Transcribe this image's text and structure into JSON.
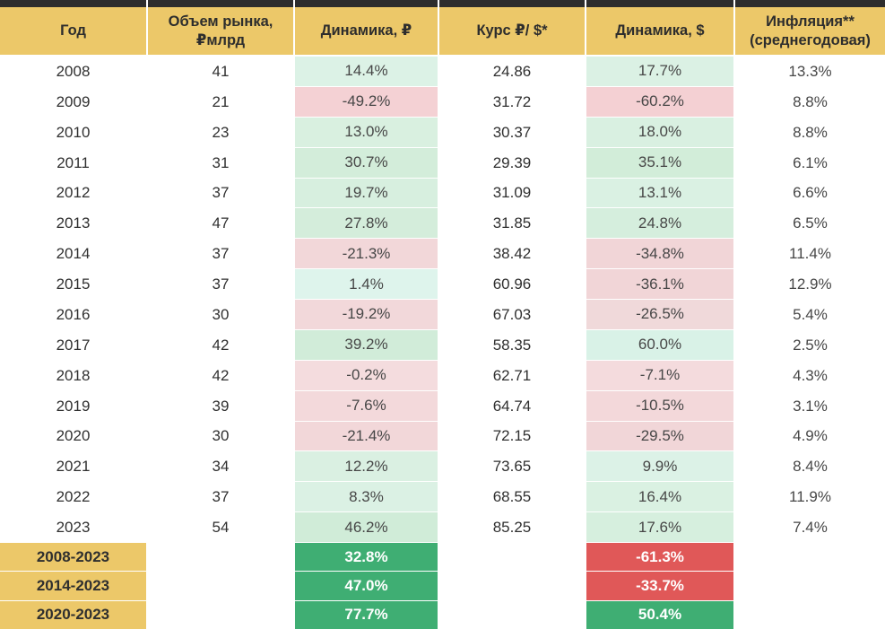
{
  "colors": {
    "top_bar": "#2d2d2d",
    "header_bg": "#ecc869",
    "summary_green": "#3fae73",
    "summary_red": "#e05858",
    "positive_light": "#dbf1e4",
    "negative_light": "#f3d8da"
  },
  "chart_data": {
    "type": "table",
    "columns": [
      "Год",
      "Объем рынка, ₽млрд",
      "Динамика, ₽",
      "Курс ₽/ $*",
      "Динамика, $",
      "Инфляция** (среднегодовая)"
    ],
    "rows": [
      {
        "year": "2008",
        "volume": "41",
        "dyn_rub": "14.4%",
        "dyn_rub_bg": "#dcf2e6",
        "rate": "24.86",
        "dyn_usd": "17.7%",
        "dyn_usd_bg": "#dbf1e4",
        "inflation": "13.3%"
      },
      {
        "year": "2009",
        "volume": "21",
        "dyn_rub": "-49.2%",
        "dyn_rub_bg": "#f4d1d4",
        "rate": "31.72",
        "dyn_usd": "-60.2%",
        "dyn_usd_bg": "#f4d0d3",
        "inflation": "8.8%"
      },
      {
        "year": "2010",
        "volume": "23",
        "dyn_rub": "13.0%",
        "dyn_rub_bg": "#d9f0e0",
        "rate": "30.37",
        "dyn_usd": "18.0%",
        "dyn_usd_bg": "#d9f0e1",
        "inflation": "8.8%"
      },
      {
        "year": "2011",
        "volume": "31",
        "dyn_rub": "30.7%",
        "dyn_rub_bg": "#d3edda",
        "rate": "29.39",
        "dyn_usd": "35.1%",
        "dyn_usd_bg": "#d2edd9",
        "inflation": "6.1%"
      },
      {
        "year": "2012",
        "volume": "37",
        "dyn_rub": "19.7%",
        "dyn_rub_bg": "#d7efdf",
        "rate": "31.09",
        "dyn_usd": "13.1%",
        "dyn_usd_bg": "#daf1e3",
        "inflation": "6.6%"
      },
      {
        "year": "2013",
        "volume": "47",
        "dyn_rub": "27.8%",
        "dyn_rub_bg": "#d4eddb",
        "rate": "31.85",
        "dyn_usd": "24.8%",
        "dyn_usd_bg": "#d5eedd",
        "inflation": "6.5%"
      },
      {
        "year": "2014",
        "volume": "37",
        "dyn_rub": "-21.3%",
        "dyn_rub_bg": "#f2d7d9",
        "rate": "38.42",
        "dyn_usd": "-34.8%",
        "dyn_usd_bg": "#f1d5d7",
        "inflation": "11.4%"
      },
      {
        "year": "2015",
        "volume": "37",
        "dyn_rub": "1.4%",
        "dyn_rub_bg": "#def4ec",
        "rate": "60.96",
        "dyn_usd": "-36.1%",
        "dyn_usd_bg": "#f1d5d7",
        "inflation": "12.9%"
      },
      {
        "year": "2016",
        "volume": "30",
        "dyn_rub": "-19.2%",
        "dyn_rub_bg": "#f2d8da",
        "rate": "67.03",
        "dyn_usd": "-26.5%",
        "dyn_usd_bg": "#f0d9da",
        "inflation": "5.4%"
      },
      {
        "year": "2017",
        "volume": "42",
        "dyn_rub": "39.2%",
        "dyn_rub_bg": "#d1ecd9",
        "rate": "58.35",
        "dyn_usd": "60.0%",
        "dyn_usd_bg": "#d9f2e7",
        "inflation": "2.5%"
      },
      {
        "year": "2018",
        "volume": "42",
        "dyn_rub": "-0.2%",
        "dyn_rub_bg": "#f4dcde",
        "rate": "62.71",
        "dyn_usd": "-7.1%",
        "dyn_usd_bg": "#f4dbdd",
        "inflation": "4.3%"
      },
      {
        "year": "2019",
        "volume": "39",
        "dyn_rub": "-7.6%",
        "dyn_rub_bg": "#f3d9db",
        "rate": "64.74",
        "dyn_usd": "-10.5%",
        "dyn_usd_bg": "#f3d8da",
        "inflation": "3.1%"
      },
      {
        "year": "2020",
        "volume": "30",
        "dyn_rub": "-21.4%",
        "dyn_rub_bg": "#f2d7d9",
        "rate": "72.15",
        "dyn_usd": "-29.5%",
        "dyn_usd_bg": "#f1d6d8",
        "inflation": "4.9%"
      },
      {
        "year": "2021",
        "volume": "34",
        "dyn_rub": "12.2%",
        "dyn_rub_bg": "#daf0e2",
        "rate": "73.65",
        "dyn_usd": "9.9%",
        "dyn_usd_bg": "#dcf2e7",
        "inflation": "8.4%"
      },
      {
        "year": "2022",
        "volume": "37",
        "dyn_rub": "8.3%",
        "dyn_rub_bg": "#dbf1e4",
        "rate": "68.55",
        "dyn_usd": "16.4%",
        "dyn_usd_bg": "#daf1e2",
        "inflation": "11.9%"
      },
      {
        "year": "2023",
        "volume": "54",
        "dyn_rub": "46.2%",
        "dyn_rub_bg": "#d0ecd8",
        "rate": "85.25",
        "dyn_usd": "17.6%",
        "dyn_usd_bg": "#d6efde",
        "inflation": "7.4%"
      }
    ],
    "summary_rows": [
      {
        "label": "2008-2023",
        "dyn_rub": "32.8%",
        "dyn_rub_bg": "#3fae73",
        "dyn_usd": "-61.3%",
        "dyn_usd_bg": "#e05858"
      },
      {
        "label": "2014-2023",
        "dyn_rub": "47.0%",
        "dyn_rub_bg": "#3fae73",
        "dyn_usd": "-33.7%",
        "dyn_usd_bg": "#e05858"
      },
      {
        "label": "2020-2023",
        "dyn_rub": "77.7%",
        "dyn_rub_bg": "#3fae73",
        "dyn_usd": "50.4%",
        "dyn_usd_bg": "#3fae73"
      }
    ]
  }
}
